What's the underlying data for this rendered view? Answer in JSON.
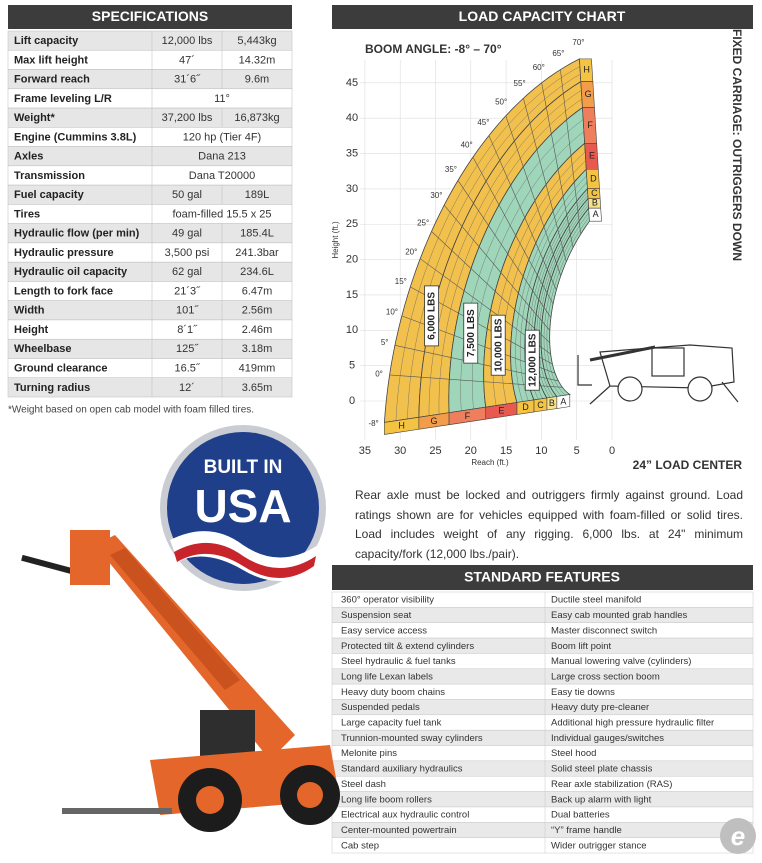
{
  "specifications": {
    "title": "SPECIFICATIONS",
    "rows": [
      [
        "Lift capacity",
        "12,000 lbs",
        "5,443kg"
      ],
      [
        "Max lift height",
        "47´",
        "14.32m"
      ],
      [
        "Forward reach",
        "31´6˝",
        "9.6m"
      ],
      [
        "Frame leveling L/R",
        "11°"
      ],
      [
        "Weight*",
        "37,200 lbs",
        "16,873kg"
      ],
      [
        "Engine (Cummins 3.8L)",
        "120 hp (Tier 4F)"
      ],
      [
        "Axles",
        "Dana 213"
      ],
      [
        "Transmission",
        "Dana T20000"
      ],
      [
        "Fuel capacity",
        "50 gal",
        "189L"
      ],
      [
        "Tires",
        "foam-filled 15.5 x 25"
      ],
      [
        "Hydraulic flow (per min)",
        "49 gal",
        "185.4L"
      ],
      [
        "Hydraulic pressure",
        "3,500 psi",
        "241.3bar"
      ],
      [
        "Hydraulic oil capacity",
        "62 gal",
        "234.6L"
      ],
      [
        "Length to fork face",
        "21´3˝",
        "6.47m"
      ],
      [
        "Width",
        "101˝",
        "2.56m"
      ],
      [
        "Height",
        "8´1˝",
        "2.46m"
      ],
      [
        "Wheelbase",
        "125˝",
        "3.18m"
      ],
      [
        "Ground clearance",
        "16.5˝",
        "419mm"
      ],
      [
        "Turning radius",
        "12´",
        "3.65m"
      ]
    ],
    "footnote": "*Weight based on open cab model with foam filled tires."
  },
  "load_chart": {
    "title": "LOAD CAPACITY CHART",
    "boom_angle": "BOOM ANGLE: -8° – 70°",
    "side_label": "FIXED CARRIAGE: OUTRIGGERS DOWN",
    "load_center": "24” LOAD CENTER",
    "y_label": "Height (ft.)",
    "x_label": "Reach (ft.)",
    "x_ticks": [
      35,
      30,
      25,
      20,
      15,
      10,
      5,
      0
    ],
    "y_ticks": [
      45,
      40,
      35,
      30,
      25,
      20,
      15,
      10,
      5,
      0
    ],
    "angles": [
      "-8°",
      "0°",
      "5°",
      "10°",
      "15°",
      "20°",
      "25°",
      "30°",
      "35°",
      "40°",
      "45°",
      "50°",
      "55°",
      "60°",
      "65°",
      "70°"
    ],
    "zones": [
      "H",
      "G",
      "F",
      "E",
      "D",
      "C",
      "B",
      "A"
    ],
    "capacities": [
      "6,000 LBS",
      "7,500 LBS",
      "10,000 LBS",
      "12,000 LBS"
    ],
    "note": "Rear axle must be locked and outriggers firmly against ground. Load ratings shown are for vehicles equipped with foam-filled or solid tires. Load includes weight of any rigging. 6,000 lbs. at 24\" minimum capacity/fork (12,000 lbs./pair)."
  },
  "badge": {
    "top": "BUILT IN",
    "main": "USA"
  },
  "features": {
    "title": "STANDARD FEATURES",
    "rows": [
      [
        "360° operator visibility",
        "Ductile steel manifold"
      ],
      [
        "Suspension seat",
        "Easy cab mounted grab handles"
      ],
      [
        "Easy service access",
        "Master disconnect switch"
      ],
      [
        "Protected tilt & extend cylinders",
        "Boom lift point"
      ],
      [
        "Steel hydraulic & fuel tanks",
        "Manual lowering valve (cylinders)"
      ],
      [
        "Long life Lexan labels",
        "Large cross section boom"
      ],
      [
        "Heavy duty boom chains",
        "Easy tie downs"
      ],
      [
        "Suspended pedals",
        "Heavy duty pre-cleaner"
      ],
      [
        "Large capacity fuel tank",
        "Additional high pressure hydraulic filter"
      ],
      [
        "Trunnion-mounted sway cylinders",
        "Individual gauges/switches"
      ],
      [
        "Melonite pins",
        "Steel hood"
      ],
      [
        "Standard auxiliary hydraulics",
        "Solid steel plate chassis"
      ],
      [
        "Steel dash",
        "Rear axle stabilization (RAS)"
      ],
      [
        "Long life boom rollers",
        "Back up alarm with light"
      ],
      [
        "Electrical aux hydraulic control",
        "Dual batteries"
      ],
      [
        "Center-mounted powertrain",
        "“Y” frame handle"
      ],
      [
        "Cab step",
        "Wider outrigger stance"
      ]
    ]
  }
}
